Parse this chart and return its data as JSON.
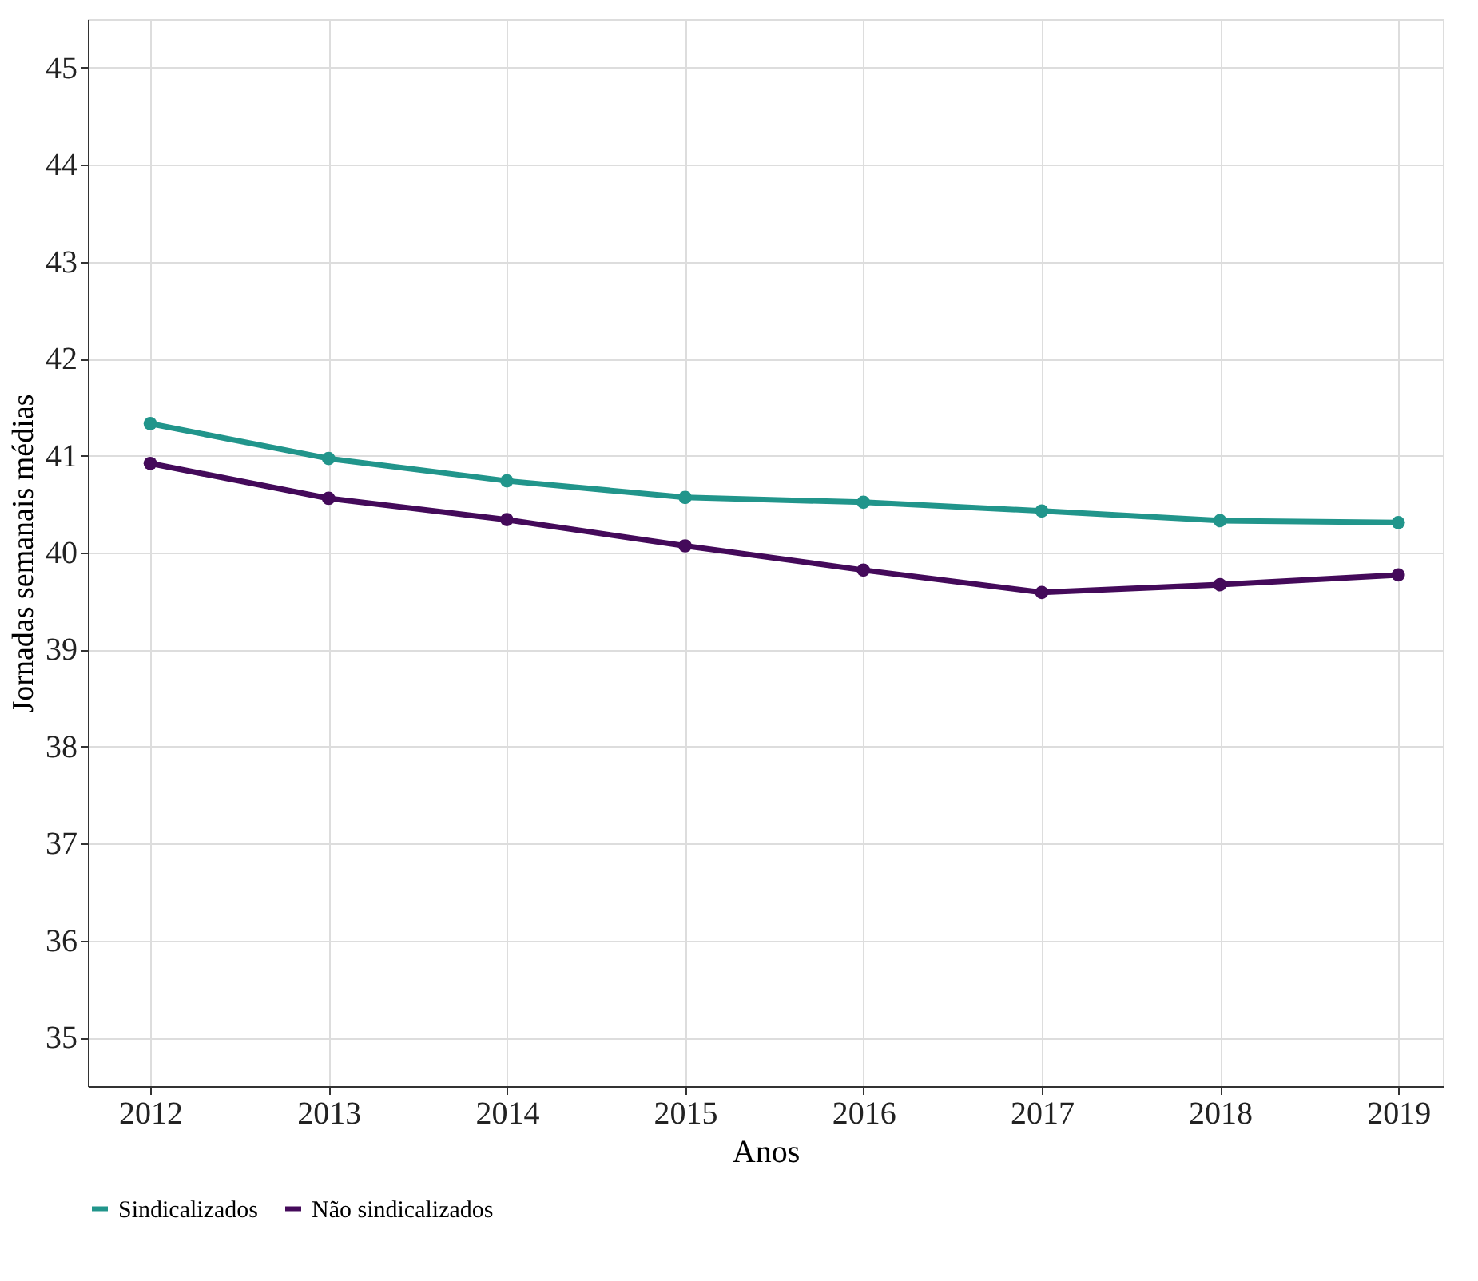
{
  "chart_data": {
    "type": "line",
    "xlabel": "Anos",
    "ylabel": "Jornadas semanais médias",
    "x": [
      2012,
      2013,
      2014,
      2015,
      2016,
      2017,
      2018,
      2019
    ],
    "series": [
      {
        "name": "Sindicalizados",
        "color": "#21958b",
        "values": [
          41.33,
          40.97,
          40.74,
          40.57,
          40.52,
          40.43,
          40.33,
          40.31
        ]
      },
      {
        "name": "Não sindicalizados",
        "color": "#440a5a",
        "values": [
          40.92,
          40.56,
          40.34,
          40.07,
          39.82,
          39.59,
          39.67,
          39.77
        ]
      }
    ],
    "xlim": [
      2011.65,
      2019.25
    ],
    "xticks": [
      2012,
      2013,
      2014,
      2015,
      2016,
      2017,
      2018,
      2019
    ],
    "ylim": [
      34.5,
      45.5
    ],
    "yticks": [
      35,
      36,
      37,
      38,
      39,
      40,
      41,
      42,
      43,
      44,
      45
    ],
    "grid": true,
    "legend": "bottom",
    "marker": "circle",
    "line_style": "solid"
  }
}
